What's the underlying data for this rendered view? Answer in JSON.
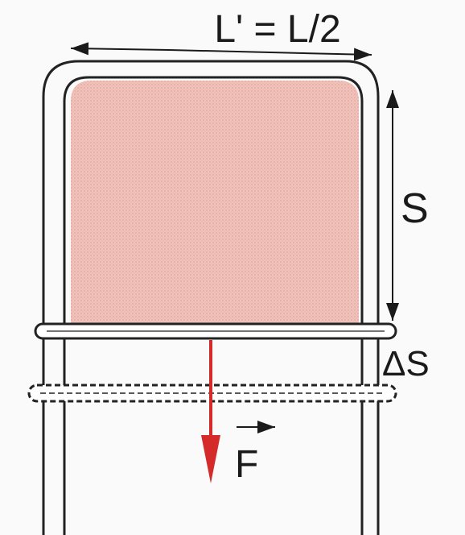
{
  "labels": {
    "top_width": "L' = L/2",
    "side_length": "S",
    "displacement": "ΔS",
    "force": "F"
  },
  "colors": {
    "background": "#fafafa",
    "film": "#f0c2ba",
    "frame_stroke": "#222222",
    "frame_fill": "#ffffff",
    "force_arrow": "#d42a2a"
  }
}
